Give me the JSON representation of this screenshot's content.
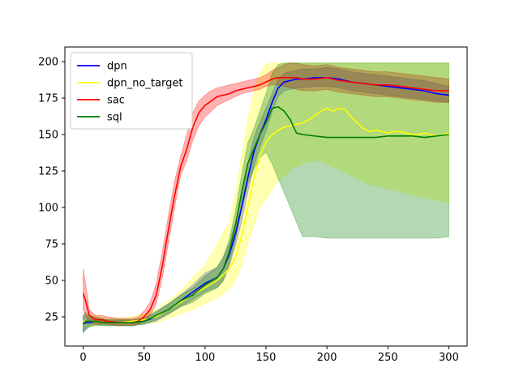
{
  "chart_data": {
    "type": "line",
    "title": "",
    "xlabel": "",
    "ylabel": "",
    "xlim": [
      -15,
      315
    ],
    "ylim": [
      5,
      210
    ],
    "xticks": [
      0,
      50,
      100,
      150,
      200,
      250,
      300
    ],
    "yticks": [
      25,
      50,
      75,
      100,
      125,
      150,
      175,
      200
    ],
    "grid": false,
    "legend_position": "upper-left",
    "series": [
      {
        "name": "dpn",
        "color": "#0000ff",
        "band_color": "#0000ff",
        "band_opacity": 0.3,
        "x": [
          0,
          2,
          5,
          10,
          20,
          30,
          40,
          50,
          60,
          70,
          80,
          90,
          100,
          105,
          110,
          115,
          120,
          125,
          130,
          135,
          140,
          145,
          150,
          155,
          160,
          165,
          170,
          175,
          180,
          190,
          200,
          210,
          220,
          230,
          240,
          250,
          260,
          270,
          280,
          290,
          300
        ],
        "y": [
          20,
          21,
          21,
          22,
          21,
          21,
          21,
          22,
          25,
          30,
          36,
          42,
          48,
          50,
          52,
          58,
          68,
          82,
          100,
          120,
          138,
          150,
          160,
          172,
          182,
          186,
          187,
          188,
          188,
          189,
          189,
          188,
          186,
          185,
          184,
          183,
          182,
          181,
          180,
          178,
          177
        ],
        "lower": [
          15,
          17,
          19,
          20,
          19,
          19,
          19,
          20,
          22,
          27,
          32,
          37,
          42,
          44,
          45,
          50,
          60,
          74,
          90,
          110,
          128,
          141,
          152,
          165,
          176,
          180,
          181,
          182,
          182,
          183,
          183,
          182,
          180,
          179,
          178,
          177,
          176,
          175,
          174,
          173,
          172
        ],
        "upper": [
          26,
          26,
          24,
          24,
          23,
          23,
          23,
          24,
          28,
          34,
          40,
          47,
          55,
          57,
          59,
          66,
          76,
          90,
          110,
          130,
          148,
          159,
          168,
          178,
          188,
          192,
          193,
          194,
          195,
          195,
          196,
          195,
          193,
          192,
          191,
          190,
          189,
          188,
          187,
          185,
          183
        ]
      },
      {
        "name": "dpn_no_target",
        "color": "#ffff00",
        "band_color": "#ffff00",
        "band_opacity": 0.3,
        "x": [
          0,
          5,
          10,
          20,
          30,
          40,
          50,
          60,
          70,
          80,
          90,
          100,
          110,
          120,
          125,
          130,
          135,
          140,
          145,
          150,
          155,
          160,
          165,
          170,
          175,
          180,
          185,
          190,
          195,
          200,
          205,
          210,
          215,
          220,
          225,
          230,
          235,
          240,
          245,
          250,
          255,
          260,
          265,
          270,
          275,
          280,
          285,
          290,
          295,
          300
        ],
        "y": [
          22,
          22,
          22,
          21,
          21,
          22,
          23,
          25,
          30,
          35,
          40,
          45,
          50,
          58,
          66,
          80,
          100,
          120,
          135,
          145,
          150,
          153,
          155,
          156,
          157,
          158,
          160,
          163,
          166,
          168,
          166,
          168,
          167,
          162,
          158,
          154,
          152,
          153,
          152,
          151,
          152,
          152,
          151,
          150,
          150,
          151,
          150,
          149,
          150,
          151
        ],
        "lower": [
          18,
          18,
          19,
          19,
          19,
          19,
          20,
          21,
          24,
          27,
          30,
          34,
          38,
          44,
          50,
          60,
          75,
          88,
          100,
          106,
          112,
          118,
          122,
          126,
          128,
          130,
          132,
          132,
          132,
          130,
          128,
          126,
          124,
          122,
          120,
          118,
          116,
          115,
          114,
          113,
          112,
          111,
          110,
          109,
          108,
          107,
          106,
          105,
          104,
          103
        ],
        "upper": [
          26,
          26,
          26,
          24,
          24,
          25,
          27,
          30,
          36,
          43,
          52,
          60,
          75,
          90,
          110,
          135,
          160,
          180,
          192,
          198,
          199,
          199,
          199,
          199,
          199,
          199,
          199,
          199,
          199,
          199,
          199,
          199,
          199,
          199,
          199,
          199,
          199,
          199,
          199,
          199,
          199,
          199,
          199,
          199,
          199,
          199,
          199,
          199,
          199,
          199
        ]
      },
      {
        "name": "sac",
        "color": "#ff0000",
        "band_color": "#ff0000",
        "band_opacity": 0.3,
        "x": [
          0,
          2,
          5,
          10,
          15,
          20,
          30,
          40,
          45,
          50,
          55,
          60,
          65,
          70,
          75,
          80,
          85,
          90,
          95,
          100,
          105,
          110,
          115,
          120,
          125,
          130,
          135,
          140,
          145,
          150,
          155,
          160,
          165,
          170,
          175,
          180,
          190,
          200,
          210,
          220,
          230,
          240,
          250,
          260,
          270,
          280,
          290,
          300
        ],
        "y": [
          41,
          36,
          26,
          23,
          23,
          22,
          21,
          21,
          22,
          25,
          30,
          40,
          60,
          85,
          108,
          128,
          140,
          155,
          165,
          170,
          173,
          176,
          177,
          178,
          180,
          181,
          182,
          183,
          184,
          186,
          188,
          189,
          189,
          189,
          189,
          188,
          188,
          189,
          187,
          186,
          185,
          184,
          184,
          183,
          182,
          181,
          180,
          180
        ],
        "lower": [
          30,
          26,
          21,
          20,
          20,
          20,
          19,
          19,
          20,
          22,
          26,
          34,
          52,
          76,
          100,
          122,
          132,
          146,
          156,
          162,
          166,
          170,
          172,
          174,
          176,
          178,
          179,
          180,
          181,
          183,
          184,
          184,
          183,
          182,
          181,
          180,
          180,
          181,
          179,
          178,
          177,
          176,
          176,
          175,
          174,
          173,
          172,
          172
        ],
        "upper": [
          58,
          48,
          30,
          26,
          26,
          25,
          24,
          24,
          25,
          29,
          35,
          48,
          70,
          95,
          118,
          135,
          150,
          165,
          173,
          177,
          180,
          182,
          183,
          184,
          185,
          186,
          187,
          188,
          189,
          191,
          194,
          196,
          198,
          199,
          199,
          198,
          197,
          198,
          196,
          195,
          194,
          193,
          193,
          192,
          191,
          190,
          189,
          188
        ]
      },
      {
        "name": "sql",
        "color": "#008000",
        "band_color": "#008000",
        "band_opacity": 0.3,
        "x": [
          0,
          2,
          5,
          10,
          20,
          30,
          40,
          50,
          60,
          70,
          80,
          90,
          100,
          110,
          115,
          120,
          125,
          130,
          135,
          140,
          145,
          150,
          155,
          160,
          165,
          170,
          175,
          180,
          190,
          200,
          210,
          220,
          230,
          240,
          250,
          260,
          270,
          280,
          290,
          300
        ],
        "y": [
          20,
          22,
          22,
          22,
          21,
          21,
          21,
          22,
          26,
          30,
          36,
          40,
          47,
          52,
          58,
          70,
          88,
          110,
          130,
          140,
          150,
          158,
          168,
          169,
          166,
          160,
          151,
          150,
          149,
          148,
          148,
          148,
          148,
          148,
          149,
          149,
          149,
          148,
          149,
          150
        ],
        "lower": [
          14,
          16,
          18,
          19,
          19,
          19,
          19,
          20,
          23,
          27,
          32,
          35,
          41,
          45,
          50,
          62,
          78,
          98,
          116,
          126,
          134,
          138,
          130,
          120,
          110,
          100,
          90,
          80,
          80,
          79,
          79,
          79,
          79,
          79,
          79,
          79,
          79,
          79,
          79,
          80
        ],
        "upper": [
          26,
          28,
          26,
          25,
          23,
          23,
          23,
          24,
          29,
          34,
          40,
          45,
          53,
          59,
          66,
          78,
          98,
          122,
          144,
          154,
          166,
          178,
          192,
          198,
          199,
          199,
          199,
          199,
          199,
          199,
          199,
          199,
          199,
          199,
          199,
          199,
          199,
          199,
          199,
          199
        ]
      }
    ]
  }
}
